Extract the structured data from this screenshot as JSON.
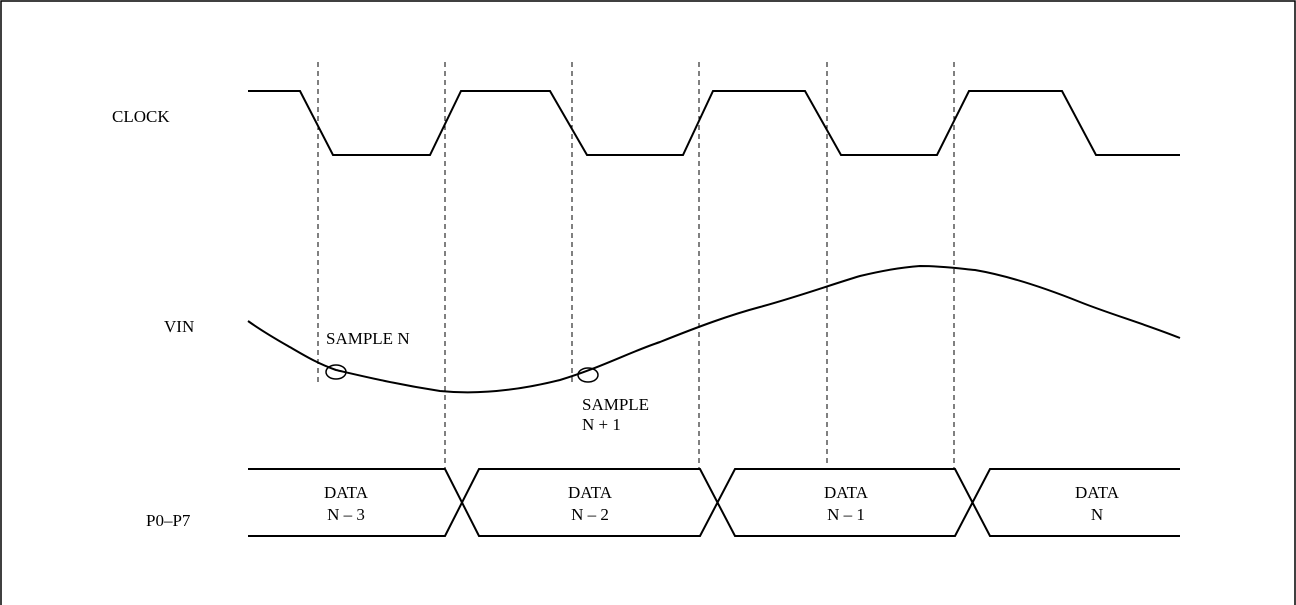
{
  "signals": {
    "clock": "CLOCK",
    "vin": "VIN",
    "bus": "P0–P7"
  },
  "samples": [
    {
      "lines": [
        "SAMPLE N"
      ]
    },
    {
      "lines": [
        "SAMPLE",
        "N + 1"
      ]
    }
  ],
  "bus_data": [
    {
      "lines": [
        "DATA",
        "N – 3"
      ]
    },
    {
      "lines": [
        "DATA",
        "N – 2"
      ]
    },
    {
      "lines": [
        "DATA",
        "N – 1"
      ]
    },
    {
      "lines": [
        "DATA",
        "N"
      ]
    }
  ]
}
